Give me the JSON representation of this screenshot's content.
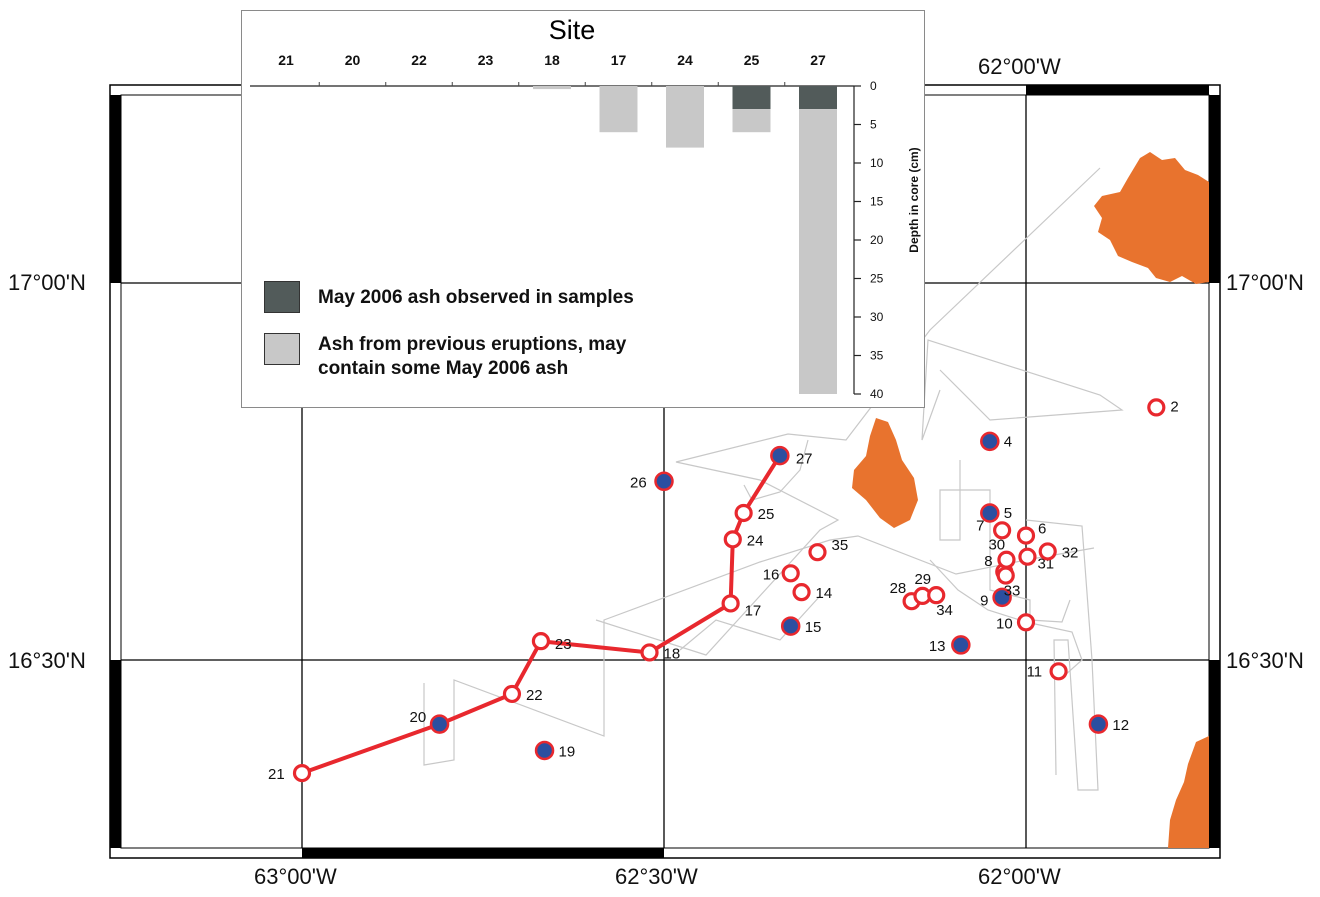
{
  "map": {
    "lon_labels_top": [
      "62°00'W"
    ],
    "lon_labels_bottom": [
      "63°00'W",
      "62°30'W",
      "62°00'W"
    ],
    "lat_labels_left": [
      "17°00'N",
      "16°30'N"
    ],
    "lat_labels_right": [
      "17°00'N",
      "16°30'N"
    ],
    "colors": {
      "land": "#e8732e",
      "station_ring": "#e8282e",
      "core_fill": "#2b4fa0",
      "track": "#c8c8c8",
      "route": "#e8282e"
    },
    "stations": [
      {
        "id": "2",
        "lon": -61.82,
        "lat": 16.835,
        "type": "open"
      },
      {
        "id": "4",
        "lon": -62.05,
        "lat": 16.79,
        "type": "core"
      },
      {
        "id": "5",
        "lon": -62.05,
        "lat": 16.695,
        "type": "core"
      },
      {
        "id": "6",
        "lon": -62.0,
        "lat": 16.665,
        "type": "open"
      },
      {
        "id": "7",
        "lon": -62.033,
        "lat": 16.672,
        "type": "open"
      },
      {
        "id": "8",
        "lon": -62.03,
        "lat": 16.617,
        "type": "open"
      },
      {
        "id": "9",
        "lon": -62.033,
        "lat": 16.583,
        "type": "core"
      },
      {
        "id": "10",
        "lon": -62.0,
        "lat": 16.55,
        "type": "open"
      },
      {
        "id": "11",
        "lon": -61.955,
        "lat": 16.485,
        "type": "open"
      },
      {
        "id": "12",
        "lon": -61.9,
        "lat": 16.415,
        "type": "core"
      },
      {
        "id": "13",
        "lon": -62.09,
        "lat": 16.52,
        "type": "core"
      },
      {
        "id": "14",
        "lon": -62.31,
        "lat": 16.59,
        "type": "open"
      },
      {
        "id": "15",
        "lon": -62.325,
        "lat": 16.545,
        "type": "core"
      },
      {
        "id": "16",
        "lon": -62.325,
        "lat": 16.615,
        "type": "open"
      },
      {
        "id": "17",
        "lon": -62.408,
        "lat": 16.575,
        "type": "open"
      },
      {
        "id": "18",
        "lon": -62.52,
        "lat": 16.51,
        "type": "open"
      },
      {
        "id": "19",
        "lon": -62.665,
        "lat": 16.38,
        "type": "core"
      },
      {
        "id": "20",
        "lon": -62.81,
        "lat": 16.415,
        "type": "core"
      },
      {
        "id": "21",
        "lon": -63.0,
        "lat": 16.35,
        "type": "open"
      },
      {
        "id": "22",
        "lon": -62.71,
        "lat": 16.455,
        "type": "open"
      },
      {
        "id": "23",
        "lon": -62.67,
        "lat": 16.525,
        "type": "open"
      },
      {
        "id": "24",
        "lon": -62.405,
        "lat": 16.66,
        "type": "open"
      },
      {
        "id": "25",
        "lon": -62.39,
        "lat": 16.695,
        "type": "open"
      },
      {
        "id": "26",
        "lon": -62.5,
        "lat": 16.737,
        "type": "core"
      },
      {
        "id": "27",
        "lon": -62.34,
        "lat": 16.771,
        "type": "core"
      },
      {
        "id": "28",
        "lon": -62.158,
        "lat": 16.578,
        "type": "open"
      },
      {
        "id": "29",
        "lon": -62.143,
        "lat": 16.585,
        "type": "open"
      },
      {
        "id": "30",
        "lon": -62.027,
        "lat": 16.633,
        "type": "open"
      },
      {
        "id": "31",
        "lon": -61.998,
        "lat": 16.637,
        "type": "open"
      },
      {
        "id": "32",
        "lon": -61.97,
        "lat": 16.644,
        "type": "open"
      },
      {
        "id": "33",
        "lon": -62.028,
        "lat": 16.612,
        "type": "open"
      },
      {
        "id": "34",
        "lon": -62.124,
        "lat": 16.586,
        "type": "open"
      },
      {
        "id": "35",
        "lon": -62.288,
        "lat": 16.643,
        "type": "open"
      }
    ],
    "route": [
      "21",
      "20",
      "22",
      "23",
      "18",
      "17",
      "24",
      "25",
      "27"
    ]
  },
  "inset_chart": {
    "chart_data": {
      "type": "bar",
      "title": "Site",
      "categories": [
        "21",
        "20",
        "22",
        "23",
        "18",
        "17",
        "24",
        "25",
        "27"
      ],
      "series": [
        {
          "name": "May 2006 ash observed in samples",
          "color": "#525b5a",
          "ranges": [
            null,
            null,
            null,
            null,
            null,
            null,
            null,
            [
              0,
              3
            ],
            [
              0,
              3
            ]
          ]
        },
        {
          "name": "Ash from previous eruptions, may contain some May 2006 ash",
          "color": "#c8c8c8",
          "ranges": [
            null,
            null,
            null,
            null,
            [
              0,
              0.4
            ],
            [
              0,
              6
            ],
            [
              0,
              8
            ],
            [
              3,
              6
            ],
            [
              3,
              40
            ]
          ]
        }
      ],
      "ylabel": "Depth in core (cm)",
      "yticks": [
        0,
        5,
        10,
        15,
        20,
        25,
        30,
        35,
        40
      ],
      "ylim": [
        0,
        40
      ],
      "y_inverted": true,
      "legend": [
        "May 2006 ash observed in samples",
        "Ash from previous eruptions, may",
        "contain some May 2006 ash"
      ]
    }
  }
}
